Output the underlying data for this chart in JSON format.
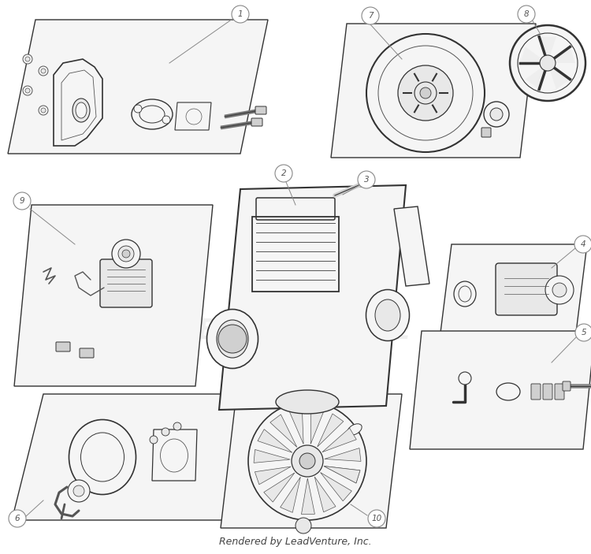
{
  "bg_color": "#ffffff",
  "lc": "#333333",
  "lc_thin": "#555555",
  "fill_white": "#ffffff",
  "fill_light": "#f5f5f5",
  "fill_mid": "#e8e8e8",
  "fill_dark": "#d0d0d0",
  "watermark_text": "LEADVENTURE",
  "watermark_color": "#e0e0e0",
  "footer_text": "Rendered by LeadVenture, Inc.",
  "footer_fontsize": 9,
  "label_circle_r": 0.013,
  "label_fontsize": 7.0
}
